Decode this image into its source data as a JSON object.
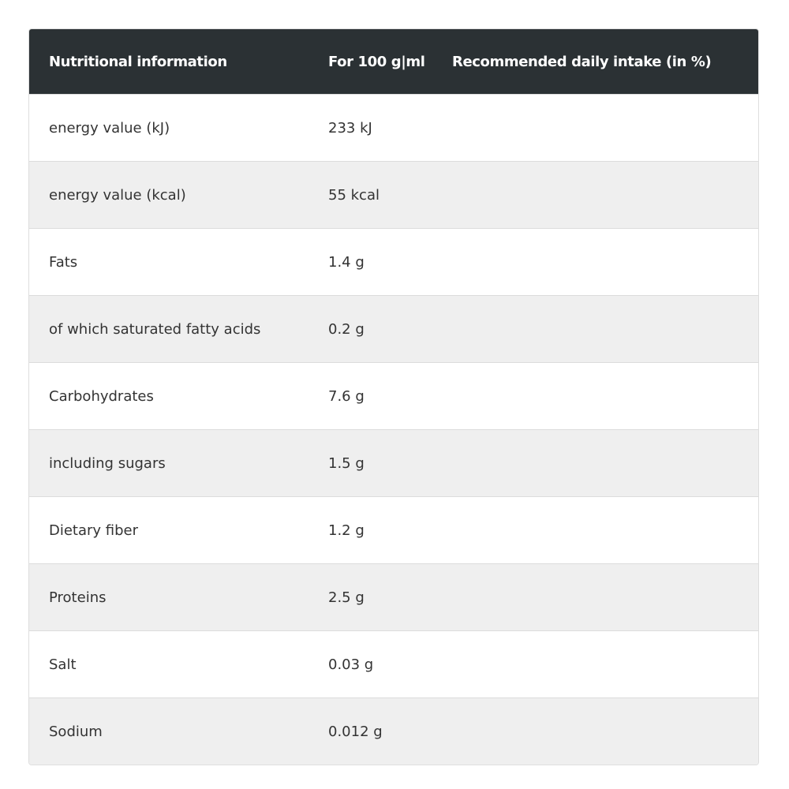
{
  "table": {
    "headers": {
      "name": "Nutritional information",
      "value": "For 100 g|ml",
      "rdi": "Recommended daily intake (in %)"
    },
    "rows": [
      {
        "name": "energy value (kJ)",
        "value": "233 kJ",
        "rdi": ""
      },
      {
        "name": "energy value (kcal)",
        "value": "55 kcal",
        "rdi": ""
      },
      {
        "name": "Fats",
        "value": "1.4 g",
        "rdi": ""
      },
      {
        "name": "of which saturated fatty acids",
        "value": "0.2 g",
        "rdi": ""
      },
      {
        "name": "Carbohydrates",
        "value": "7.6 g",
        "rdi": ""
      },
      {
        "name": "including sugars",
        "value": "1.5 g",
        "rdi": ""
      },
      {
        "name": "Dietary fiber",
        "value": "1.2 g",
        "rdi": ""
      },
      {
        "name": "Proteins",
        "value": "2.5 g",
        "rdi": ""
      },
      {
        "name": "Salt",
        "value": "0.03 g",
        "rdi": ""
      },
      {
        "name": "Sodium",
        "value": "0.012 g",
        "rdi": ""
      }
    ]
  },
  "colors": {
    "header_background": "#2b3134",
    "header_text": "#ffffff",
    "row_alt_background": "#efefef",
    "row_background": "#ffffff"
  }
}
